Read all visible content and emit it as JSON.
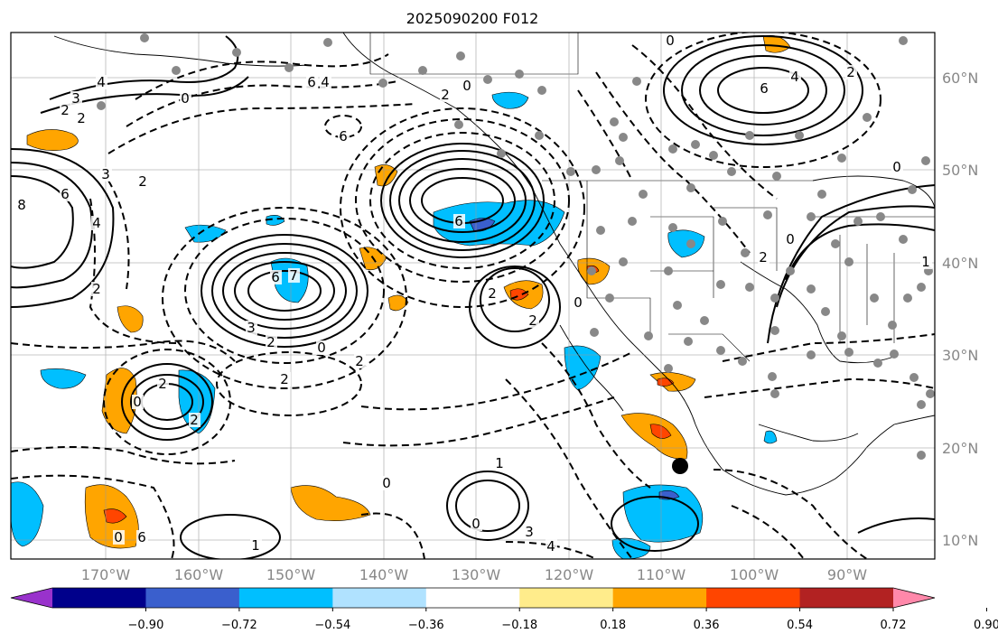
{
  "title": "2025090200 F012",
  "lat_labels": [
    "60°N",
    "50°N",
    "40°N",
    "30°N",
    "20°N",
    "10°N"
  ],
  "lon_labels": [
    "170°W",
    "160°W",
    "150°W",
    "140°W",
    "130°W",
    "120°W",
    "110°W",
    "100°W",
    "90°W"
  ],
  "colorbar": {
    "colors": [
      "#9932cc",
      "#00008b",
      "#3a5fcd",
      "#00bfff",
      "#b0e2ff",
      "#ffffff",
      "#ffec8b",
      "#ffa500",
      "#ff4500",
      "#b22222",
      "#ff88aa"
    ],
    "tick_labels": [
      "−0.90",
      "−0.72",
      "−0.54",
      "−0.36",
      "−0.18",
      "0.18",
      "0.36",
      "0.54",
      "0.72",
      "0.90"
    ]
  },
  "contour_labels": [
    "4",
    "3",
    "2",
    "2",
    "0",
    "6",
    "6",
    "4",
    "0",
    "2",
    "6",
    "4",
    "8",
    "6",
    "4",
    "3",
    "2",
    "2",
    "6",
    "7",
    "3",
    "2",
    "0",
    "2",
    "2",
    "6",
    "2",
    "2",
    "0",
    "0",
    "2",
    "2",
    "0",
    "1",
    "0",
    "1",
    "0",
    "6",
    "4",
    "3",
    "2",
    "0",
    "0",
    "2",
    "0",
    "1"
  ]
}
